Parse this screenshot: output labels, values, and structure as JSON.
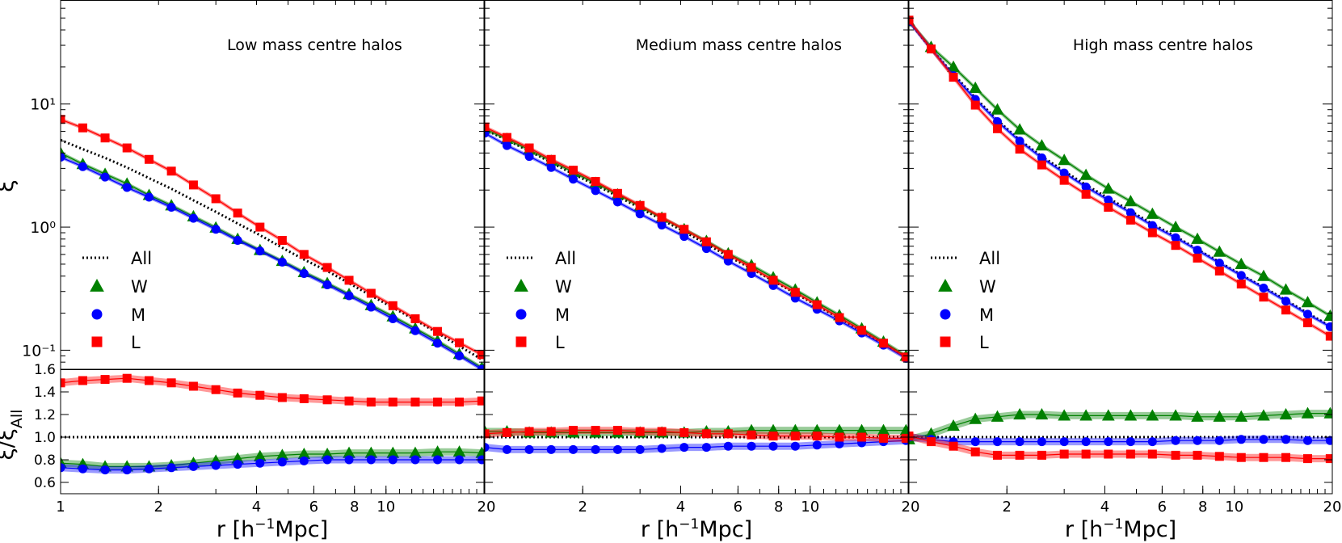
{
  "figure": {
    "xlabel": "r [h",
    "xlabel_sup": "−1",
    "xlabel_end": "Mpc]",
    "ylabel_top": "ξ",
    "ylabel_bottom": "ξ/ξ",
    "ylabel_bottom_sub": "All"
  },
  "legend": {
    "entries": [
      "All",
      "W",
      "M",
      "L"
    ]
  },
  "colors": {
    "All": "#000000",
    "W": "#008000",
    "M": "#0000ff",
    "L": "#ff0000"
  },
  "chart_data": [
    {
      "type": "line",
      "title": "Low mass centre halos",
      "xscale": "log",
      "yscale": "log",
      "xlim": [
        1,
        20
      ],
      "ylim": [
        0.07,
        70
      ],
      "x": [
        1.0,
        1.17,
        1.37,
        1.6,
        1.87,
        2.19,
        2.56,
        3.0,
        3.5,
        4.1,
        4.8,
        5.6,
        6.6,
        7.7,
        9.0,
        10.5,
        12.3,
        14.4,
        16.8,
        19.7
      ],
      "series": [
        {
          "name": "All",
          "values": [
            5.1,
            4.3,
            3.65,
            3.05,
            2.5,
            2.05,
            1.65,
            1.33,
            1.07,
            0.86,
            0.68,
            0.545,
            0.44,
            0.35,
            0.278,
            0.222,
            0.176,
            0.138,
            0.108,
            0.084
          ]
        },
        {
          "name": "W",
          "values": [
            4.0,
            3.25,
            2.7,
            2.25,
            1.82,
            1.5,
            1.22,
            0.99,
            0.8,
            0.65,
            0.53,
            0.43,
            0.35,
            0.285,
            0.232,
            0.188,
            0.15,
            0.119,
            0.093,
            0.072
          ]
        },
        {
          "name": "M",
          "values": [
            3.7,
            3.1,
            2.55,
            2.1,
            1.75,
            1.45,
            1.18,
            0.96,
            0.78,
            0.64,
            0.52,
            0.42,
            0.34,
            0.277,
            0.224,
            0.18,
            0.144,
            0.114,
            0.09,
            0.07
          ]
        },
        {
          "name": "L",
          "values": [
            7.5,
            6.4,
            5.3,
            4.4,
            3.55,
            2.85,
            2.2,
            1.7,
            1.3,
            1.0,
            0.78,
            0.6,
            0.47,
            0.37,
            0.29,
            0.23,
            0.18,
            0.142,
            0.115,
            0.092
          ]
        }
      ],
      "ratio": {
        "ylim": [
          0.5,
          1.6
        ],
        "ytick_labels": [
          "0.6",
          "0.8",
          "1.0",
          "1.2",
          "1.4",
          "1.6"
        ],
        "series": [
          {
            "name": "W",
            "values": [
              0.77,
              0.76,
              0.74,
              0.74,
              0.74,
              0.75,
              0.77,
              0.79,
              0.81,
              0.83,
              0.84,
              0.85,
              0.85,
              0.86,
              0.86,
              0.86,
              0.86,
              0.87,
              0.87,
              0.86
            ]
          },
          {
            "name": "M",
            "values": [
              0.73,
              0.72,
              0.71,
              0.71,
              0.72,
              0.73,
              0.74,
              0.75,
              0.76,
              0.77,
              0.78,
              0.79,
              0.8,
              0.8,
              0.8,
              0.8,
              0.8,
              0.8,
              0.8,
              0.8
            ]
          },
          {
            "name": "L",
            "values": [
              1.48,
              1.5,
              1.51,
              1.52,
              1.5,
              1.48,
              1.45,
              1.42,
              1.39,
              1.37,
              1.35,
              1.34,
              1.33,
              1.32,
              1.31,
              1.31,
              1.31,
              1.31,
              1.31,
              1.32
            ]
          }
        ]
      }
    },
    {
      "type": "line",
      "title": "Medium mass centre halos",
      "xscale": "log",
      "yscale": "log",
      "xlim": [
        1,
        20
      ],
      "ylim": [
        0.07,
        70
      ],
      "x": [
        1.0,
        1.17,
        1.37,
        1.6,
        1.87,
        2.19,
        2.56,
        3.0,
        3.5,
        4.1,
        4.8,
        5.6,
        6.6,
        7.7,
        9.0,
        10.5,
        12.3,
        14.4,
        16.8,
        19.7
      ],
      "series": [
        {
          "name": "All",
          "values": [
            6.2,
            5.1,
            4.15,
            3.35,
            2.7,
            2.2,
            1.78,
            1.43,
            1.15,
            0.92,
            0.73,
            0.58,
            0.46,
            0.365,
            0.29,
            0.23,
            0.182,
            0.143,
            0.113,
            0.088
          ]
        },
        {
          "name": "W",
          "values": [
            6.3,
            5.2,
            4.25,
            3.45,
            2.8,
            2.28,
            1.84,
            1.48,
            1.19,
            0.96,
            0.77,
            0.61,
            0.49,
            0.39,
            0.31,
            0.244,
            0.192,
            0.15,
            0.117,
            0.09
          ]
        },
        {
          "name": "M",
          "values": [
            5.8,
            4.6,
            3.75,
            3.05,
            2.45,
            1.98,
            1.6,
            1.28,
            1.04,
            0.84,
            0.67,
            0.53,
            0.42,
            0.335,
            0.265,
            0.215,
            0.173,
            0.138,
            0.11,
            0.086
          ]
        },
        {
          "name": "L",
          "values": [
            6.5,
            5.35,
            4.4,
            3.55,
            2.9,
            2.35,
            1.88,
            1.5,
            1.2,
            0.96,
            0.76,
            0.6,
            0.47,
            0.37,
            0.295,
            0.234,
            0.184,
            0.145,
            0.114,
            0.088
          ]
        }
      ],
      "ratio": {
        "ylim": [
          0.5,
          1.6
        ],
        "ytick_labels": [],
        "series": [
          {
            "name": "W",
            "values": [
              1.05,
              1.05,
              1.04,
              1.04,
              1.04,
              1.04,
              1.04,
              1.04,
              1.04,
              1.04,
              1.05,
              1.05,
              1.06,
              1.06,
              1.06,
              1.06,
              1.06,
              1.06,
              1.06,
              1.06
            ]
          },
          {
            "name": "M",
            "values": [
              0.91,
              0.89,
              0.89,
              0.89,
              0.89,
              0.89,
              0.89,
              0.89,
              0.9,
              0.91,
              0.91,
              0.92,
              0.92,
              0.92,
              0.92,
              0.93,
              0.94,
              0.95,
              0.96,
              0.97
            ]
          },
          {
            "name": "L",
            "values": [
              1.03,
              1.04,
              1.05,
              1.05,
              1.06,
              1.06,
              1.06,
              1.05,
              1.05,
              1.04,
              1.03,
              1.03,
              1.02,
              1.01,
              1.01,
              1.01,
              1.0,
              1.0,
              0.99,
              0.99
            ]
          }
        ]
      }
    },
    {
      "type": "line",
      "title": "High mass centre halos",
      "xscale": "log",
      "yscale": "log",
      "xlim": [
        1,
        20
      ],
      "ylim": [
        0.07,
        70
      ],
      "x": [
        1.0,
        1.17,
        1.37,
        1.6,
        1.87,
        2.19,
        2.56,
        3.0,
        3.5,
        4.1,
        4.8,
        5.6,
        6.6,
        7.7,
        9.0,
        10.5,
        12.3,
        14.4,
        16.8,
        19.7
      ],
      "series": [
        {
          "name": "All",
          "values": [
            47,
            28,
            17.5,
            11.2,
            7.4,
            5.1,
            3.75,
            2.85,
            2.2,
            1.72,
            1.35,
            1.06,
            0.84,
            0.66,
            0.52,
            0.41,
            0.325,
            0.255,
            0.2,
            0.157
          ]
        },
        {
          "name": "W",
          "values": [
            47,
            29,
            20.0,
            13.5,
            9.0,
            6.2,
            4.6,
            3.5,
            2.65,
            2.05,
            1.62,
            1.28,
            1.0,
            0.8,
            0.63,
            0.5,
            0.4,
            0.31,
            0.245,
            0.19
          ]
        },
        {
          "name": "M",
          "values": [
            47,
            28,
            17.0,
            10.9,
            7.2,
            5.0,
            3.65,
            2.75,
            2.12,
            1.66,
            1.31,
            1.03,
            0.82,
            0.65,
            0.51,
            0.405,
            0.32,
            0.25,
            0.196,
            0.155
          ]
        },
        {
          "name": "L",
          "values": [
            48,
            28,
            16.5,
            9.8,
            6.3,
            4.3,
            3.2,
            2.4,
            1.85,
            1.45,
            1.14,
            0.9,
            0.71,
            0.56,
            0.44,
            0.345,
            0.27,
            0.212,
            0.167,
            0.13
          ]
        }
      ],
      "ratio": {
        "ylim": [
          0.5,
          1.6
        ],
        "ytick_labels": [],
        "series": [
          {
            "name": "W",
            "values": [
              0.98,
              1.03,
              1.1,
              1.16,
              1.18,
              1.2,
              1.2,
              1.19,
              1.19,
              1.19,
              1.19,
              1.19,
              1.19,
              1.18,
              1.18,
              1.18,
              1.19,
              1.2,
              1.21,
              1.21
            ]
          },
          {
            "name": "M",
            "values": [
              1.0,
              0.98,
              0.96,
              0.96,
              0.96,
              0.96,
              0.96,
              0.96,
              0.96,
              0.96,
              0.96,
              0.96,
              0.97,
              0.97,
              0.97,
              0.98,
              0.98,
              0.98,
              0.97,
              0.97
            ]
          },
          {
            "name": "L",
            "values": [
              1.01,
              0.96,
              0.92,
              0.87,
              0.84,
              0.84,
              0.84,
              0.85,
              0.85,
              0.85,
              0.85,
              0.85,
              0.84,
              0.84,
              0.83,
              0.82,
              0.82,
              0.82,
              0.81,
              0.81
            ]
          }
        ]
      }
    }
  ],
  "axes": {
    "x_tick_labels": [
      "1",
      "2",
      "4",
      "6",
      "8",
      "10",
      "20"
    ],
    "x_tick_values": [
      1,
      2,
      4,
      6,
      8,
      10,
      20
    ],
    "y_tick_labels": [
      "10⁻¹",
      "10⁰",
      "10¹"
    ],
    "y_tick_values": [
      0.1,
      1,
      10
    ]
  }
}
